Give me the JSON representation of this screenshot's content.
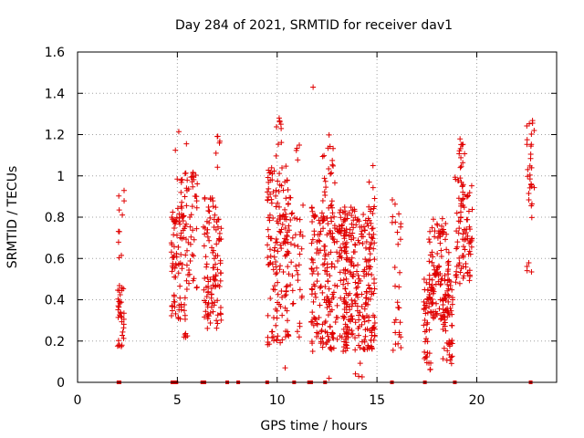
{
  "chart_data": {
    "type": "scatter",
    "title": "Day 284 of 2021, SRMTID for receiver dav1",
    "xlabel": "GPS time / hours",
    "ylabel": "SRMTID / TECUs",
    "xlim": [
      0,
      24
    ],
    "ylim": [
      0,
      1.6
    ],
    "x_ticks": [
      0,
      5,
      10,
      15,
      20
    ],
    "x_tick_labels": [
      "0",
      "5",
      "10",
      "15",
      "20"
    ],
    "y_ticks": [
      0,
      0.2,
      0.4,
      0.6,
      0.8,
      1.0,
      1.2,
      1.4,
      1.6
    ],
    "y_tick_labels": [
      "0",
      "0.2",
      "0.4",
      "0.6",
      "0.8",
      "1",
      "1.2",
      "1.4",
      "1.6"
    ],
    "grid": true,
    "marker": "+",
    "color": "#e00000",
    "zero_markers_x": [
      2.05,
      2.1,
      4.75,
      4.85,
      4.95,
      6.25,
      6.35,
      7.5,
      8.05,
      9.5,
      10.85,
      11.6,
      11.7,
      12.4,
      15.75,
      17.4,
      18.9,
      22.7
    ],
    "clusters": [
      {
        "x": [
          2.0,
          2.35
        ],
        "y": [
          0.15,
          0.52
        ],
        "n": 36
      },
      {
        "x": [
          2.05,
          2.35
        ],
        "y": [
          0.6,
          0.93
        ],
        "n": 10
      },
      {
        "x": [
          4.7,
          5.4
        ],
        "y": [
          0.3,
          0.85
        ],
        "n": 85
      },
      {
        "x": [
          4.9,
          5.5
        ],
        "y": [
          0.85,
          1.22
        ],
        "n": 16
      },
      {
        "x": [
          5.3,
          5.5
        ],
        "y": [
          0.17,
          0.3
        ],
        "n": 5
      },
      {
        "x": [
          5.4,
          6.0
        ],
        "y": [
          0.45,
          1.02
        ],
        "n": 45
      },
      {
        "x": [
          6.3,
          7.2
        ],
        "y": [
          0.25,
          0.9
        ],
        "n": 110
      },
      {
        "x": [
          6.9,
          7.15
        ],
        "y": [
          1.04,
          1.21
        ],
        "n": 6
      },
      {
        "x": [
          9.5,
          10.6
        ],
        "y": [
          0.18,
          1.05
        ],
        "n": 150
      },
      {
        "x": [
          9.9,
          10.3
        ],
        "y": [
          1.05,
          1.3
        ],
        "n": 8
      },
      {
        "x": [
          10.5,
          11.3
        ],
        "y": [
          0.22,
          0.9
        ],
        "n": 45
      },
      {
        "x": [
          10.9,
          11.2
        ],
        "y": [
          1.05,
          1.15
        ],
        "n": 4
      },
      {
        "x": [
          11.7,
          13.5
        ],
        "y": [
          0.15,
          0.85
        ],
        "n": 230
      },
      {
        "x": [
          12.2,
          12.9
        ],
        "y": [
          0.85,
          1.2
        ],
        "n": 22
      },
      {
        "x": [
          13.3,
          14.9
        ],
        "y": [
          0.15,
          0.85
        ],
        "n": 250
      },
      {
        "x": [
          13.9,
          14.3
        ],
        "y": [
          0.0,
          0.1
        ],
        "n": 4
      },
      {
        "x": [
          14.6,
          14.9
        ],
        "y": [
          0.85,
          1.05
        ],
        "n": 4
      },
      {
        "x": [
          15.7,
          16.2
        ],
        "y": [
          0.15,
          0.9
        ],
        "n": 30
      },
      {
        "x": [
          17.3,
          17.7
        ],
        "y": [
          0.05,
          0.5
        ],
        "n": 40
      },
      {
        "x": [
          17.6,
          18.6
        ],
        "y": [
          0.3,
          0.8
        ],
        "n": 120
      },
      {
        "x": [
          18.3,
          18.8
        ],
        "y": [
          0.08,
          0.5
        ],
        "n": 50
      },
      {
        "x": [
          18.9,
          19.8
        ],
        "y": [
          0.45,
          1.0
        ],
        "n": 90
      },
      {
        "x": [
          19.1,
          19.4
        ],
        "y": [
          1.0,
          1.23
        ],
        "n": 12
      },
      {
        "x": [
          22.5,
          22.9
        ],
        "y": [
          0.53,
          0.62
        ],
        "n": 4
      },
      {
        "x": [
          22.5,
          22.9
        ],
        "y": [
          0.78,
          1.27
        ],
        "n": 28
      }
    ],
    "outlier_points": [
      {
        "x": 11.8,
        "y": 1.43
      },
      {
        "x": 10.1,
        "y": 1.28
      },
      {
        "x": 12.6,
        "y": 0.02
      },
      {
        "x": 10.4,
        "y": 0.07
      },
      {
        "x": 14.8,
        "y": 1.05
      }
    ]
  }
}
